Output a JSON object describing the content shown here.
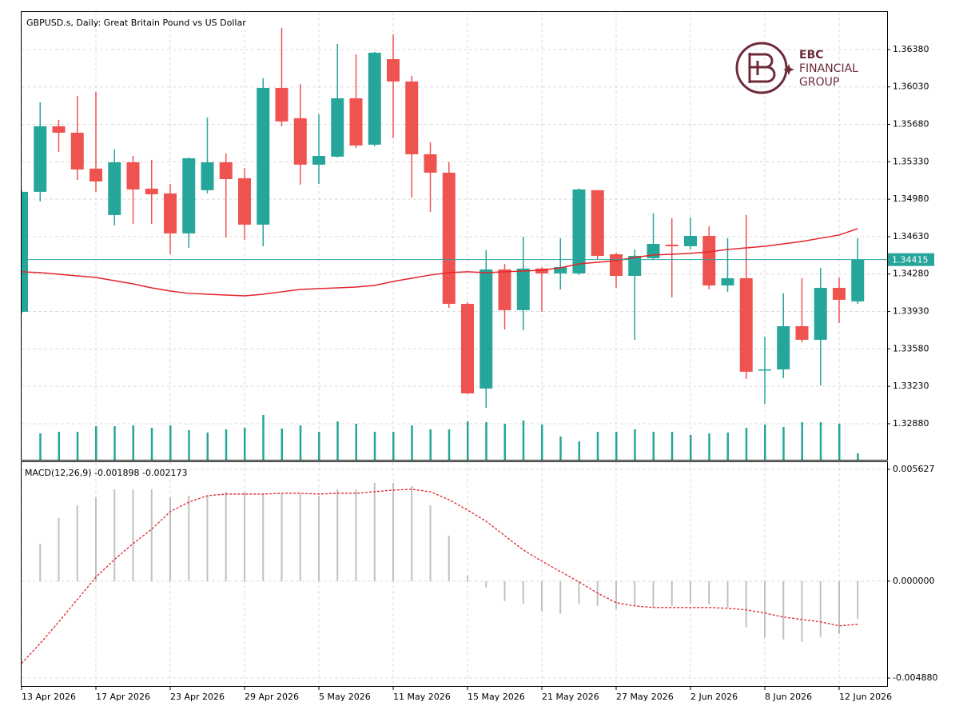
{
  "chart_data": [
    {
      "type": "candlestick",
      "title": "GBPUSD.s, Daily:  Great Britain Pound vs US Dollar",
      "categories": [
        "13 Apr 2026",
        null,
        null,
        null,
        "17 Apr 2026",
        null,
        null,
        null,
        "23 Apr 2026",
        null,
        null,
        null,
        "29 Apr 2026",
        null,
        null,
        null,
        "5 May 2026",
        null,
        null,
        null,
        "11 May 2026",
        null,
        null,
        null,
        "15 May 2026",
        null,
        null,
        null,
        "21 May 2026",
        null,
        null,
        null,
        "27 May 2026",
        null,
        null,
        null,
        "2 Jun 2026",
        null,
        null,
        null,
        "8 Jun 2026",
        null,
        null,
        null,
        "12 Jun 2026",
        null
      ],
      "open": [
        1.33927,
        1.35049,
        1.35662,
        1.35602,
        1.35266,
        1.34832,
        1.35325,
        1.35079,
        1.35034,
        1.3466,
        1.35064,
        1.35325,
        1.35176,
        1.34742,
        1.36021,
        1.35737,
        1.35303,
        1.35378,
        1.35924,
        1.3549,
        1.3629,
        1.36081,
        1.354,
        1.35228,
        1.34001,
        1.33209,
        1.34323,
        1.33942,
        1.34331,
        1.34286,
        1.34286,
        1.35064,
        1.34465,
        1.34263,
        1.34428,
        1.34555,
        1.3454,
        1.34637,
        1.34173,
        1.34241,
        1.33381,
        1.33388,
        1.33792,
        1.33665,
        1.34151,
        1.34024
      ],
      "high": [
        1.35064,
        1.35886,
        1.35722,
        1.35946,
        1.35984,
        1.35445,
        1.35385,
        1.35348,
        1.35123,
        1.3537,
        1.35744,
        1.35408,
        1.35273,
        1.36111,
        1.36582,
        1.36058,
        1.35774,
        1.36432,
        1.36335,
        1.36358,
        1.36522,
        1.36133,
        1.35512,
        1.35325,
        1.34016,
        1.34503,
        1.34375,
        1.3463,
        1.34345,
        1.34615,
        1.35079,
        1.35064,
        1.3448,
        1.3451,
        1.34847,
        1.34802,
        1.34809,
        1.34727,
        1.34615,
        1.34832,
        1.33695,
        1.34099,
        1.34241,
        1.34338,
        1.34248,
        1.34615
      ],
      "low": [
        1.33912,
        1.34959,
        1.35423,
        1.35161,
        1.35049,
        1.34734,
        1.34749,
        1.34749,
        1.34465,
        1.34525,
        1.35034,
        1.34622,
        1.346,
        1.3454,
        1.35662,
        1.35116,
        1.35123,
        1.3537,
        1.3546,
        1.35475,
        1.3555,
        1.34996,
        1.34862,
        1.33964,
        1.33156,
        1.33029,
        1.33762,
        1.33755,
        1.33927,
        1.34136,
        1.34271,
        1.34413,
        1.34151,
        1.33665,
        1.34413,
        1.34061,
        1.3451,
        1.34136,
        1.34114,
        1.33298,
        1.33066,
        1.33306,
        1.33642,
        1.33238,
        1.33822,
        1.34001
      ],
      "close": [
        1.35049,
        1.35662,
        1.35602,
        1.35258,
        1.35146,
        1.35325,
        1.35071,
        1.35026,
        1.3466,
        1.35363,
        1.35325,
        1.35168,
        1.34742,
        1.36021,
        1.35707,
        1.35303,
        1.35385,
        1.35924,
        1.35482,
        1.3635,
        1.36081,
        1.354,
        1.35228,
        1.34001,
        1.33164,
        1.34323,
        1.33942,
        1.34331,
        1.34286,
        1.34345,
        1.35071,
        1.3445,
        1.34263,
        1.3445,
        1.34562,
        1.3454,
        1.34637,
        1.34173,
        1.34241,
        1.33366,
        1.33388,
        1.33792,
        1.33665,
        1.34151,
        1.34039,
        1.34415
      ],
      "up_color": "#26a69a",
      "down_color": "#ef5350",
      "ma": {
        "color": "#e3242b",
        "values": [
          1.34301,
          1.34293,
          1.34278,
          1.34263,
          1.34248,
          1.34218,
          1.34188,
          1.34151,
          1.34121,
          1.34099,
          1.34091,
          1.34084,
          1.34076,
          1.34091,
          1.34114,
          1.34136,
          1.34143,
          1.34151,
          1.34158,
          1.34173,
          1.34211,
          1.34241,
          1.34271,
          1.34293,
          1.34301,
          1.34293,
          1.34301,
          1.34308,
          1.34316,
          1.34338,
          1.34375,
          1.3439,
          1.34405,
          1.34435,
          1.34458,
          1.34465,
          1.34473,
          1.34488,
          1.3451,
          1.34525,
          1.3454,
          1.34562,
          1.34585,
          1.34615,
          1.34645,
          1.34705
        ]
      },
      "volume": {
        "color": "#26a69a",
        "values": [
          null,
          33,
          35,
          35,
          42,
          42,
          43,
          40,
          43,
          37,
          34,
          38,
          40,
          56,
          39,
          43,
          35,
          48,
          45,
          35,
          35,
          43,
          38,
          38,
          48,
          47,
          45,
          49,
          44,
          29,
          23,
          35,
          35,
          38,
          35,
          35,
          31,
          33,
          34,
          40,
          44,
          41,
          47,
          47,
          45,
          8
        ]
      },
      "last_price": 1.34415,
      "last_price_color": "#26a69a",
      "ylim": [
        1.32543,
        1.36731
      ],
      "yticks": [
        {
          "value": 1.3638,
          "label": "1.36380"
        },
        {
          "value": 1.3603,
          "label": "1.36030"
        },
        {
          "value": 1.3568,
          "label": "1.35680"
        },
        {
          "value": 1.3533,
          "label": "1.35330"
        },
        {
          "value": 1.3498,
          "label": "1.34980"
        },
        {
          "value": 1.3463,
          "label": "1.34630"
        },
        {
          "value": 1.3428,
          "label": "1.34280"
        },
        {
          "value": 1.3393,
          "label": "1.33930"
        },
        {
          "value": 1.3358,
          "label": "1.33580"
        },
        {
          "value": 1.3323,
          "label": "1.33230"
        },
        {
          "value": 1.3288,
          "label": "1.32880"
        }
      ],
      "grid": true
    },
    {
      "type": "macd",
      "label": "MACD(12,26,9)",
      "histogram": {
        "color": "#c0c0c0",
        "values": [
          null,
          0.001889,
          0.003176,
          0.003819,
          0.004221,
          0.004623,
          0.004623,
          0.004623,
          0.004221,
          0.004301,
          0.004301,
          0.004502,
          0.004502,
          0.004422,
          0.004422,
          0.004422,
          0.004301,
          0.004623,
          0.004623,
          0.004945,
          0.004945,
          0.004784,
          0.003819,
          0.002291,
          0.000281,
          -0.000322,
          -0.001005,
          -0.001126,
          -0.001528,
          -0.001648,
          -0.001126,
          -0.001246,
          -0.001407,
          -0.001246,
          -0.001327,
          -0.001246,
          -0.001126,
          -0.001166,
          -0.001327,
          -0.002332,
          -0.002854,
          -0.002935,
          -0.003055,
          -0.002814,
          -0.002653,
          -0.001898
        ]
      },
      "signal": {
        "color": "#e3242b",
        "values": [
          -0.004141,
          -0.003136,
          -0.00205,
          -0.000925,
          0.000201,
          0.001085,
          0.001889,
          0.002613,
          0.003497,
          0.00398,
          0.004301,
          0.004382,
          0.004382,
          0.004382,
          0.004422,
          0.004422,
          0.004382,
          0.004422,
          0.004422,
          0.004502,
          0.004583,
          0.004623,
          0.004502,
          0.0041,
          0.003578,
          0.003015,
          0.002291,
          0.001568,
          0.001005,
          0.000482,
          -4e-05,
          -0.000603,
          -0.001085,
          -0.001246,
          -0.001327,
          -0.001327,
          -0.001327,
          -0.001327,
          -0.001367,
          -0.001447,
          -0.001608,
          -0.001809,
          -0.00193,
          -0.00205,
          -0.002251,
          -0.002173
        ]
      },
      "ylim": [
        -0.00528,
        0.00599
      ],
      "yticks": [
        0.005627,
        {
          "value": 0,
          "label": "0.000000"
        },
        {
          "value": -0.00488,
          "label": "-0.004880"
        }
      ],
      "grid": true
    }
  ],
  "logo": {
    "lines": [
      "EBC",
      "FINANCIAL",
      "GROUP"
    ]
  }
}
